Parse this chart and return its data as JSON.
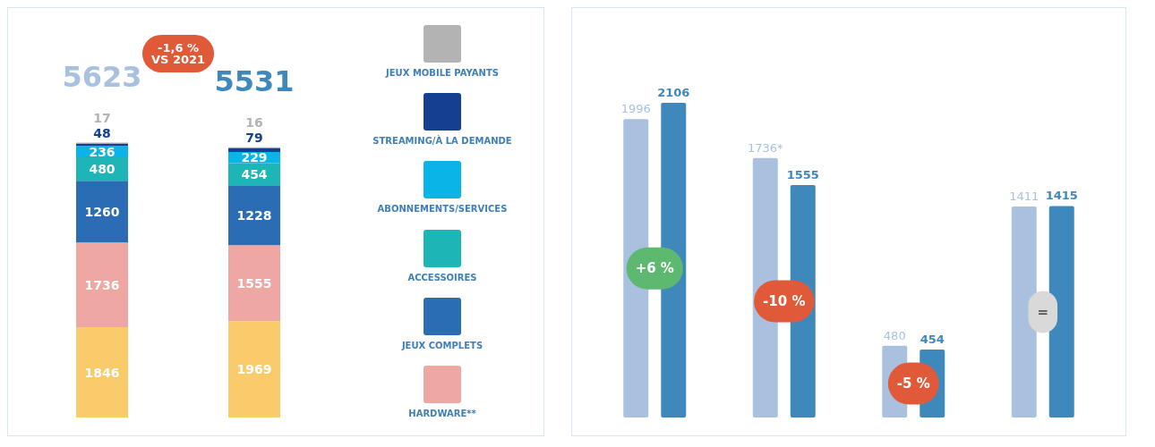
{
  "chart_data": [
    {
      "type": "bar",
      "stacked": true,
      "categories": [
        null,
        null
      ],
      "data_labels": true,
      "legend": "right",
      "totals": [
        "5623",
        "5531"
      ],
      "annotations": [
        "-1,6 %\nVS 2021"
      ],
      "series": [
        {
          "color": "#f9cb6b",
          "values": [
            1846,
            1969
          ]
        },
        {
          "name": "HARDWARE**",
          "color": "#efa7a4",
          "values": [
            1736,
            1555
          ]
        },
        {
          "name": "JEUX COMPLETS",
          "color": "#2a6db5",
          "values": [
            1260,
            1228
          ]
        },
        {
          "name": "ACCESSOIRES",
          "color": "#1db5b5",
          "values": [
            480,
            454
          ]
        },
        {
          "name": "ABONNEMENTS/SERVICES",
          "color": "#0bb4e6",
          "values": [
            236,
            229
          ]
        },
        {
          "name": "STREAMING/À LA DEMANDE",
          "color": "#153f91",
          "values": [
            48,
            79
          ]
        },
        {
          "name": "JEUX MOBILE PAYANTS",
          "color": "#b3b3b3",
          "values": [
            17,
            16
          ]
        }
      ]
    },
    {
      "type": "bar",
      "categories": [
        null,
        null,
        null,
        null
      ],
      "annotations": [
        "+6 %",
        "-10 %",
        "-5 %",
        "="
      ],
      "series": [
        {
          "color": "#a9c1de",
          "values": [
            1996,
            1736,
            480,
            1411
          ],
          "value_labels": [
            "1996",
            "1736*",
            "480",
            "1411"
          ]
        },
        {
          "color": "#3f88bb",
          "values": [
            2106,
            1555,
            454,
            1415
          ],
          "value_labels": [
            "2106",
            "1555",
            "454",
            "1415"
          ]
        }
      ]
    }
  ]
}
